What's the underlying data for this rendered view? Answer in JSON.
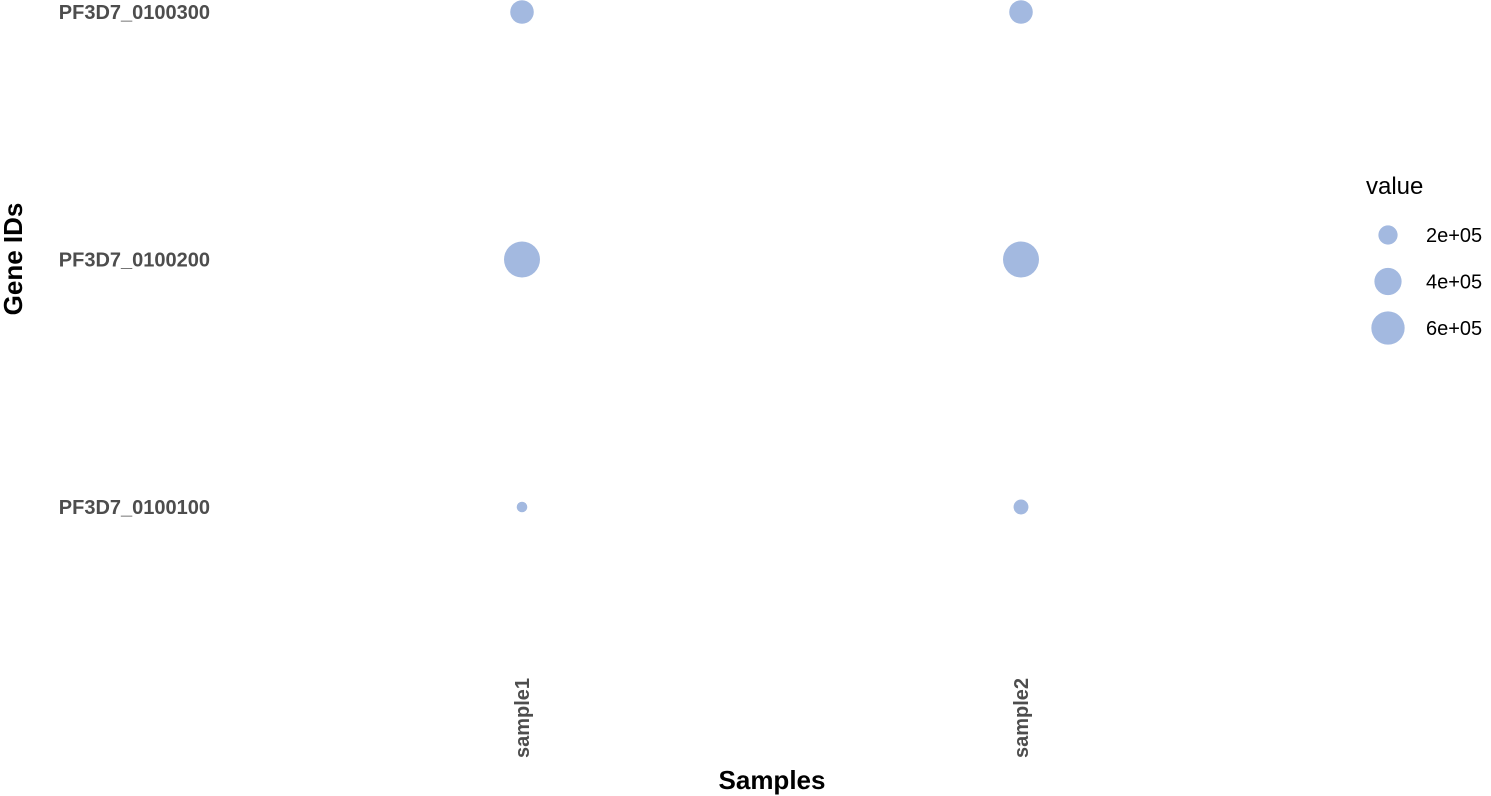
{
  "chart_data": {
    "type": "scatter",
    "title": "",
    "xlabel": "Samples",
    "ylabel": "Gene IDs",
    "x_categories": [
      "sample1",
      "sample2"
    ],
    "y_categories": [
      "PF3D7_0100100",
      "PF3D7_0100200",
      "PF3D7_0100300"
    ],
    "points": [
      {
        "x": "sample1",
        "y": "PF3D7_0100300",
        "value": 300000
      },
      {
        "x": "sample2",
        "y": "PF3D7_0100300",
        "value": 300000
      },
      {
        "x": "sample1",
        "y": "PF3D7_0100200",
        "value": 700000
      },
      {
        "x": "sample2",
        "y": "PF3D7_0100200",
        "value": 700000
      },
      {
        "x": "sample1",
        "y": "PF3D7_0100100",
        "value": 60000
      },
      {
        "x": "sample2",
        "y": "PF3D7_0100100",
        "value": 120000
      }
    ],
    "size_scale_domain": [
      0,
      700000
    ],
    "legend": {
      "title": "value",
      "position": "right",
      "entries": [
        {
          "label": "2e+05",
          "value": 200000
        },
        {
          "label": "4e+05",
          "value": 400000
        },
        {
          "label": "6e+05",
          "value": 600000
        }
      ]
    },
    "point_color": "#a3b9e0",
    "grid": false
  }
}
